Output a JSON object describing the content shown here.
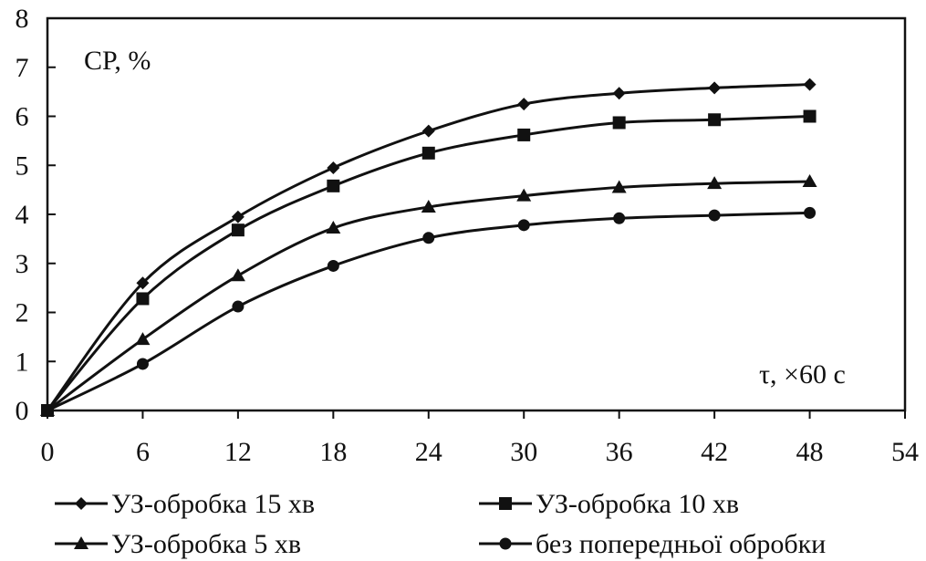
{
  "chart_data": {
    "type": "line",
    "x": [
      0,
      6,
      12,
      18,
      24,
      30,
      36,
      42,
      48
    ],
    "xlim": [
      0,
      54
    ],
    "ylim": [
      0,
      8
    ],
    "x_ticks": [
      "0",
      "6",
      "12",
      "18",
      "24",
      "30",
      "36",
      "42",
      "48",
      "54"
    ],
    "y_ticks": [
      "0",
      "1",
      "2",
      "3",
      "4",
      "5",
      "6",
      "7",
      "8"
    ],
    "ylabel": "CP, %",
    "xlabel": "τ, ×60 c",
    "grid": false,
    "legend_position": "bottom",
    "series": [
      {
        "name": "УЗ-обробка 15 хв",
        "marker": "diamond",
        "color": "#111111",
        "values": [
          0,
          2.6,
          3.95,
          4.95,
          5.7,
          6.25,
          6.47,
          6.58,
          6.65
        ]
      },
      {
        "name": "УЗ-обробка 10 хв",
        "marker": "square",
        "color": "#111111",
        "values": [
          0,
          2.28,
          3.68,
          4.58,
          5.25,
          5.62,
          5.87,
          5.93,
          6.0
        ]
      },
      {
        "name": "УЗ-обробка 5 хв",
        "marker": "triangle",
        "color": "#111111",
        "values": [
          0,
          1.45,
          2.75,
          3.72,
          4.15,
          4.38,
          4.55,
          4.63,
          4.67
        ]
      },
      {
        "name": "без попередньої обробки",
        "marker": "circle",
        "color": "#111111",
        "values": [
          0,
          0.95,
          2.12,
          2.95,
          3.52,
          3.78,
          3.92,
          3.98,
          4.03
        ]
      }
    ]
  }
}
